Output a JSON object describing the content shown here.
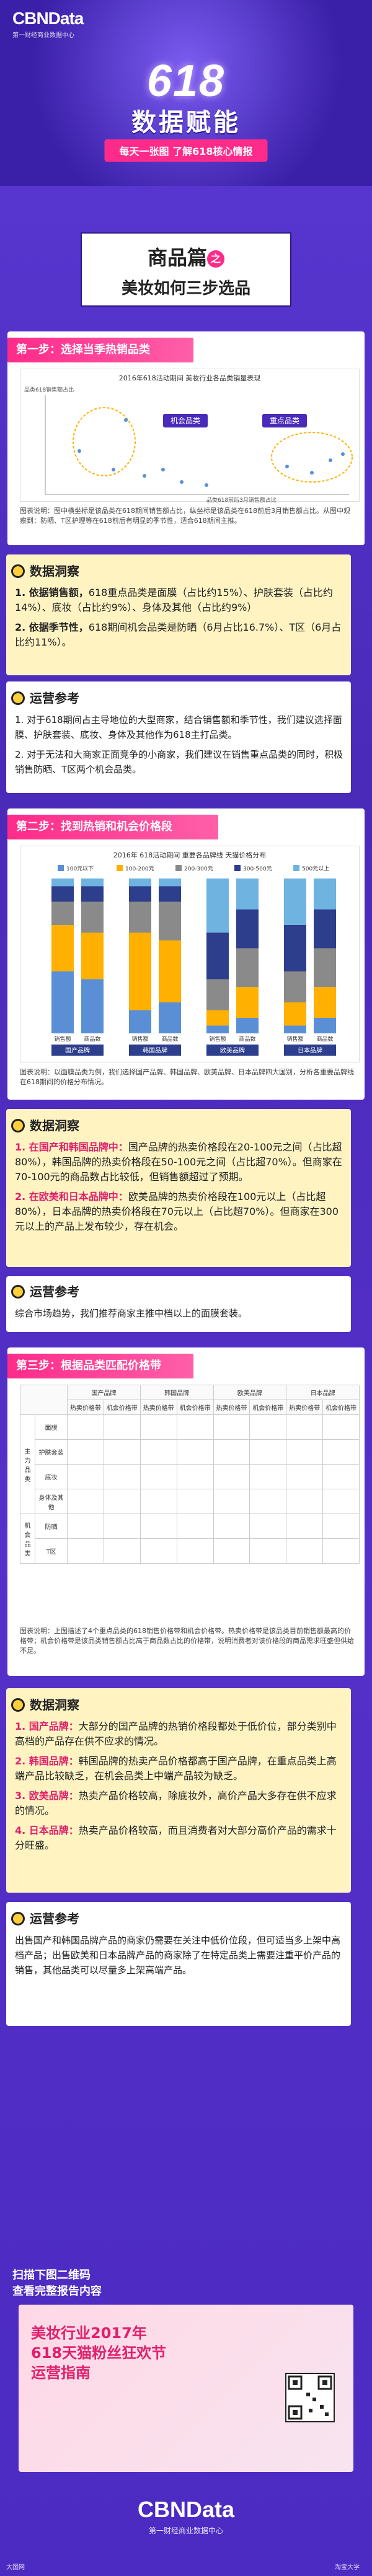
{
  "header": {
    "logo_main": "CBNData",
    "logo_sub": "第一财经商业数据中心",
    "badge_618": "618",
    "title": "数据赋能",
    "subtitle": "每天一张图 了解618核心情报"
  },
  "title_card": {
    "line1": "商品篇",
    "circle": "之",
    "line2": "美妆如何三步选品"
  },
  "step1": {
    "head": "第一步：选择当季热销品类",
    "chart_title": "2016年618活动期间 美妆行业各品类销量表现",
    "y_label": "品类618销售额占比",
    "x_label": "品类618前后3月销售额占比",
    "groups": [
      "机会品类",
      "重点品类"
    ],
    "caption": "图表说明：图中横坐标是该品类在618期间销售额占比，纵坐标是该品类在618前后3月销售额占比。从图中观察到：防晒、T区护理等在618前后有明显的季节性，适合618期间主推。",
    "caption_label": "图表说明："
  },
  "insight1": {
    "tag": "数据洞察",
    "items": [
      {
        "bold": "1. 依据销售额，",
        "text": "618重点品类是面膜（占比约15%）、护肤套装（占比约14%）、底妆（占比约9%）、身体及其他（占比约9%）"
      },
      {
        "bold": "2. 依据季节性，",
        "text": "618期间机会品类是防晒（6月占比16.7%）、T区（6月占比约11%）。"
      }
    ]
  },
  "ops1": {
    "tag": "运营参考",
    "items": [
      "1. 对于618期间占主导地位的大型商家，结合销售额和季节性，我们建议选择面膜、护肤套装、底妆、身体及其他作为618主打品类。",
      "2. 对于无法和大商家正面竞争的小商家，我们建议在销售重点品类的同时，积极销售防晒、T区两个机会品类。"
    ]
  },
  "step2": {
    "head": "第二步：找到热销和机会价格段",
    "chart_title": "2016年 618活动期间 重要各品牌线 天猫价格分布",
    "legend": [
      "100元以下",
      "100-200元",
      "200-300元",
      "300-500元",
      "500元以上"
    ],
    "group_labels": [
      "国产品牌",
      "韩国品牌",
      "欧美品牌",
      "日本品牌"
    ],
    "bar_labels": [
      "销售额",
      "商品数"
    ],
    "caption": "图表说明：以面膜品类为例，我们选择国产品牌、韩国品牌、欧美品牌、日本品牌四大国别，分析各重要品牌线在618期间的价格分布情况。"
  },
  "insight2": {
    "tag": "数据洞察",
    "items": [
      {
        "bold": "1. 在国产和韩国品牌中：",
        "text": "国产品牌的热卖价格段在20-100元之间（占比超80%），韩国品牌的热卖价格段在50-100元之间（占比超70%）。但商家在70-100元的商品数占比较低，但销售额超过了预期。"
      },
      {
        "bold": "2. 在欧美和日本品牌中：",
        "text": "欧美品牌的热卖价格段在100元以上（占比超80%），日本品牌的热卖价格段在70元以上（占比超70%）。但商家在300元以上的产品上发布较少，存在机会。"
      }
    ]
  },
  "ops2": {
    "tag": "运营参考",
    "text": "综合市场趋势，我们推荐商家主推中档以上的面膜套装。"
  },
  "step3": {
    "head": "第三步：根据品类匹配价格带",
    "col_groups": [
      "国产品牌",
      "韩国品牌",
      "欧美品牌",
      "日本品牌"
    ],
    "sub_cols": [
      "热卖价格带",
      "机会价格带"
    ],
    "rows": [
      "面膜",
      "护肤套装",
      "底妆",
      "身体及其他",
      "防晒",
      "T区"
    ],
    "row_group": "主力品类",
    "row_group2": "机会品类",
    "caption": "图表说明：上图描述了4个重点品类的618销售价格带和机会价格带。热卖价格带是该品类目前销售额最高的价格带；机会价格带是该品类销售额占比高于商品数占比的价格带，说明消费者对该价格段的商品需求旺盛但供给不足。"
  },
  "insight3": {
    "tag": "数据洞察",
    "items": [
      {
        "bold": "1. 国产品牌：",
        "text": "大部分的国产品牌的热销价格段都处于低价位，部分类别中高档的产品存在供不应求的情况。"
      },
      {
        "bold": "2. 韩国品牌：",
        "text": "韩国品牌的热卖产品价格都高于国产品牌，在重点品类上高端产品比较缺乏，在机会品类上中端产品较为缺乏。"
      },
      {
        "bold": "3. 欧美品牌：",
        "text": "热卖产品价格较高，除底妆外，高价产品大多存在供不应求的情况。"
      },
      {
        "bold": "4. 日本品牌：",
        "text": "热卖产品价格较高，而且消费者对大部分高价产品的需求十分旺盛。"
      }
    ]
  },
  "ops3": {
    "tag": "运营参考",
    "text": "出售国产和韩国品牌产品的商家仍需要在关注中低价位段，但可适当多上架中高档产品；出售欧美和日本品牌产品的商家除了在特定品类上需要注重平价产品的销售，其他品类可以尽量多上架高端产品。"
  },
  "scan": {
    "line1": "扫描下图二维码",
    "line2": "查看完整报告内容"
  },
  "promo": {
    "line1": "美妆行业2017年",
    "line2": "618天猫粉丝狂欢节",
    "line3": "运营指南"
  },
  "footer": {
    "logo": "CBNData",
    "sub": "第一财经商业数据中心"
  },
  "watermark_left": "大图网",
  "watermark_right": "淘宝大学"
}
